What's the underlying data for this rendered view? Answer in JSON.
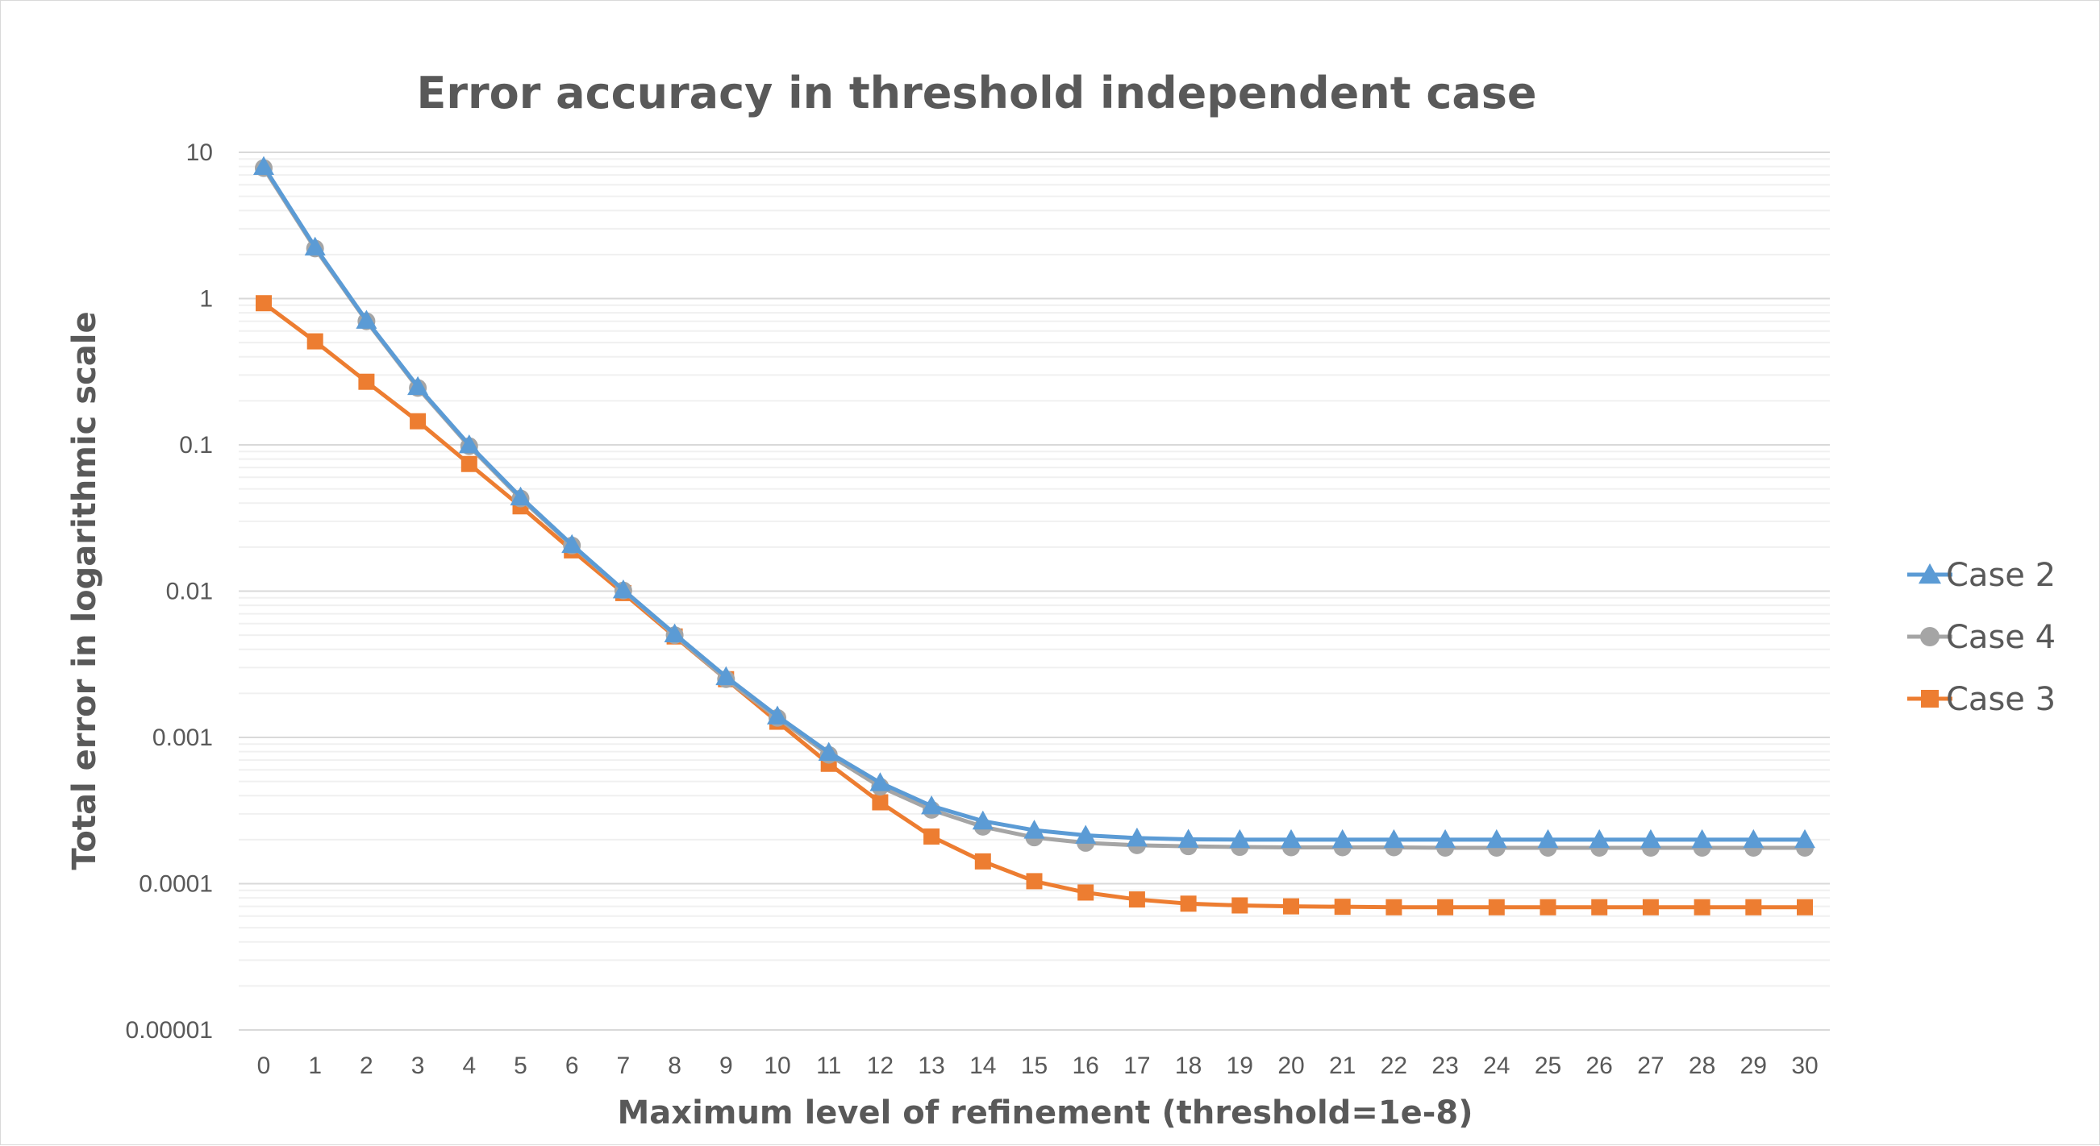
{
  "chart_data": {
    "type": "line",
    "title": "Error accuracy in threshold independent case",
    "xlabel": "Maximum level of refinement (threshold=1e-8)",
    "ylabel": "Total error in logarithmic scale",
    "y_scale": "log",
    "ylim": [
      1e-05,
      10
    ],
    "y_ticks": [
      "10",
      "1",
      "0.1",
      "0.01",
      "0.001",
      "0.0001",
      "0.00001"
    ],
    "x": [
      0,
      1,
      2,
      3,
      4,
      5,
      6,
      7,
      8,
      9,
      10,
      11,
      12,
      13,
      14,
      15,
      16,
      17,
      18,
      19,
      20,
      21,
      22,
      23,
      24,
      25,
      26,
      27,
      28,
      29,
      30
    ],
    "legend_position": "right",
    "grid": true,
    "series": [
      {
        "name": "Case 3",
        "color": "#ed7d31",
        "marker": "square",
        "values": [
          0.93,
          0.51,
          0.27,
          0.145,
          0.074,
          0.038,
          0.019,
          0.0097,
          0.0049,
          0.0025,
          0.00128,
          0.00066,
          0.00036,
          0.00021,
          0.000142,
          0.000104,
          8.7e-05,
          7.8e-05,
          7.3e-05,
          7.1e-05,
          7e-05,
          6.95e-05,
          6.9e-05,
          6.9e-05,
          6.9e-05,
          6.9e-05,
          6.9e-05,
          6.9e-05,
          6.9e-05,
          6.9e-05,
          6.9e-05
        ]
      },
      {
        "name": "Case 4",
        "color": "#a5a5a5",
        "marker": "circle",
        "values": [
          7.8,
          2.2,
          0.7,
          0.245,
          0.098,
          0.043,
          0.0205,
          0.0101,
          0.005,
          0.0025,
          0.00136,
          0.00076,
          0.00046,
          0.00032,
          0.000245,
          0.000207,
          0.00019,
          0.000183,
          0.00018,
          0.000178,
          0.000177,
          0.000177,
          0.000177,
          0.000176,
          0.000176,
          0.000176,
          0.000176,
          0.000176,
          0.000176,
          0.000176,
          0.000176
        ]
      },
      {
        "name": "Case 2",
        "color": "#5b9bd5",
        "marker": "triangle",
        "values": [
          8.0,
          2.25,
          0.71,
          0.25,
          0.1,
          0.044,
          0.0208,
          0.0102,
          0.0051,
          0.0026,
          0.0014,
          0.00079,
          0.00049,
          0.00034,
          0.000268,
          0.000232,
          0.000214,
          0.000205,
          0.000201,
          0.0002,
          0.0002,
          0.0002,
          0.0002,
          0.0002,
          0.0002,
          0.0002,
          0.0002,
          0.0002,
          0.0002,
          0.0002,
          0.0002
        ]
      }
    ],
    "legend_order": [
      "Case 2",
      "Case 4",
      "Case 3"
    ]
  }
}
